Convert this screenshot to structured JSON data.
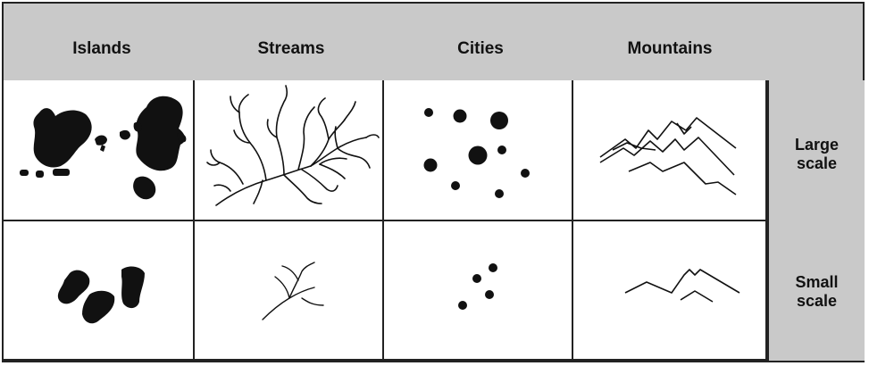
{
  "columns": [
    "Islands",
    "Streams",
    "Cities",
    "Mountains"
  ],
  "rows": [
    {
      "line1": "Large",
      "line2": "scale"
    },
    {
      "line1": "Small",
      "line2": "scale"
    }
  ],
  "colors": {
    "header_bg": "#c9c9c9",
    "border": "#222222",
    "ink": "#111111"
  }
}
